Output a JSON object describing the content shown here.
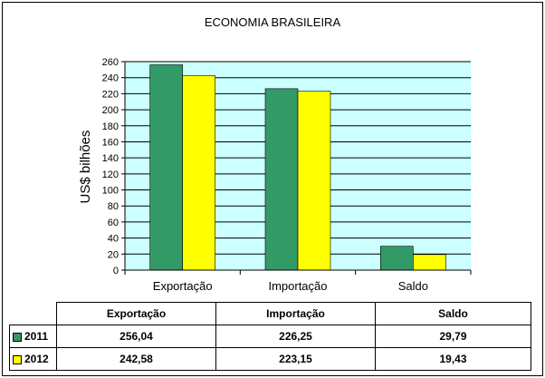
{
  "chart_data": {
    "type": "bar",
    "title": "ECONOMIA BRASILEIRA",
    "xlabel": "",
    "ylabel": "US$ bilhões",
    "ylim": [
      0,
      260
    ],
    "ytick_step": 20,
    "yticks": [
      "0",
      "20",
      "40",
      "60",
      "80",
      "100",
      "120",
      "140",
      "160",
      "180",
      "200",
      "220",
      "240",
      "260"
    ],
    "categories": [
      "Exportação",
      "Importação",
      "Saldo"
    ],
    "series": [
      {
        "name": "2011",
        "values": [
          256.04,
          226.25,
          29.79
        ],
        "labels": [
          "256,04",
          "226,25",
          "29,79"
        ],
        "color": "#339966"
      },
      {
        "name": "2012",
        "values": [
          242.58,
          223.15,
          19.43
        ],
        "labels": [
          "242,58",
          "223,15",
          "19,43"
        ],
        "color": "#FFFF00"
      }
    ],
    "plot_background": "#CCFFFF",
    "grid": true,
    "legend": "data table below chart"
  }
}
